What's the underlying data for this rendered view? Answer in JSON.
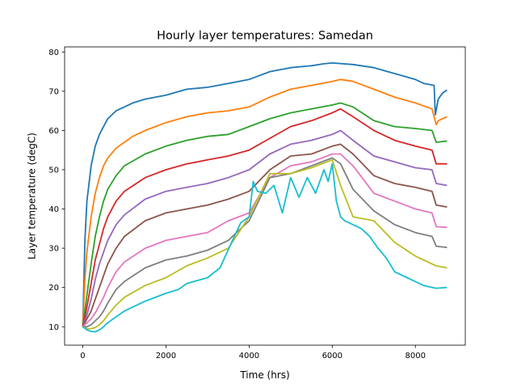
{
  "chart_data": {
    "type": "line",
    "title": "Hourly layer temperatures: Samedan",
    "xlabel": "Time (hrs)",
    "ylabel": "Layer temperature (degC)",
    "xlim": [
      -437,
      9200
    ],
    "ylim": [
      5.3,
      81.3
    ],
    "xticks": [
      0,
      2000,
      4000,
      6000,
      8000
    ],
    "yticks": [
      10,
      20,
      30,
      40,
      50,
      60,
      70,
      80
    ],
    "grid": false,
    "legend": "none",
    "series": [
      {
        "color": "#1f77b4",
        "x": [
          0,
          50,
          100,
          200,
          300,
          400,
          500,
          600,
          800,
          1000,
          1200,
          1500,
          2000,
          2500,
          3000,
          3500,
          4000,
          4500,
          5000,
          5500,
          5800,
          6000,
          6500,
          7000,
          7500,
          8000,
          8200,
          8450,
          8480,
          8550,
          8650,
          8760
        ],
        "y": [
          10,
          32,
          42,
          51,
          56,
          59,
          61,
          63,
          65,
          66,
          67,
          68,
          69,
          70.5,
          71,
          72,
          73,
          75,
          76,
          76.5,
          77,
          77.2,
          76.8,
          76,
          74.5,
          73,
          72,
          71.5,
          64,
          68,
          69.5,
          70.3
        ]
      },
      {
        "color": "#ff7f0e",
        "x": [
          0,
          50,
          100,
          200,
          300,
          400,
          500,
          600,
          800,
          1000,
          1200,
          1500,
          2000,
          2500,
          3000,
          3500,
          4000,
          4500,
          5000,
          5500,
          6000,
          6200,
          6500,
          7000,
          7500,
          8000,
          8400,
          8500,
          8550,
          8650,
          8760
        ],
        "y": [
          10,
          22,
          29,
          38,
          44,
          48,
          51,
          53,
          55.5,
          57,
          58.5,
          60,
          62,
          63.5,
          64.5,
          65,
          66,
          68.5,
          70.5,
          71.5,
          72.5,
          73,
          72.5,
          70.5,
          68.5,
          67,
          65.5,
          61.5,
          62.5,
          63,
          63.5
        ]
      },
      {
        "color": "#2ca02c",
        "x": [
          0,
          100,
          200,
          300,
          400,
          500,
          600,
          800,
          1000,
          1500,
          2000,
          2500,
          3000,
          3500,
          4000,
          4500,
          5000,
          5500,
          6000,
          6200,
          6500,
          7000,
          7500,
          8000,
          8400,
          8500,
          8760
        ],
        "y": [
          10,
          18,
          26,
          33,
          38,
          42,
          45,
          48.5,
          51,
          54,
          56,
          57.5,
          58.5,
          59,
          61,
          63,
          64.5,
          65.5,
          66.5,
          67,
          66,
          62.5,
          61,
          60.5,
          60,
          57,
          57.3
        ]
      },
      {
        "color": "#d62728",
        "x": [
          0,
          100,
          200,
          300,
          400,
          500,
          600,
          800,
          1000,
          1500,
          2000,
          2500,
          3000,
          3500,
          4000,
          4500,
          5000,
          5500,
          6000,
          6200,
          6500,
          7000,
          7500,
          8000,
          8400,
          8500,
          8760
        ],
        "y": [
          10,
          15,
          21,
          27,
          31,
          35,
          38,
          42,
          44.5,
          48,
          50,
          51.5,
          52.5,
          53.5,
          55,
          58,
          61,
          62.5,
          64.5,
          65.5,
          63.5,
          60,
          57.5,
          56,
          55,
          51.5,
          51.5
        ]
      },
      {
        "color": "#9467bd",
        "x": [
          0,
          100,
          200,
          300,
          400,
          500,
          600,
          800,
          1000,
          1500,
          2000,
          2500,
          3000,
          3500,
          4000,
          4500,
          5000,
          5500,
          6000,
          6200,
          6500,
          7000,
          7500,
          8000,
          8400,
          8500,
          8760
        ],
        "y": [
          10,
          13,
          17,
          22,
          26,
          29,
          32,
          36,
          38.5,
          42.5,
          44.5,
          45.5,
          46.5,
          48,
          50,
          54,
          56.5,
          57.5,
          59,
          60,
          57.5,
          53.5,
          52,
          50.5,
          50,
          46.5,
          46
        ]
      },
      {
        "color": "#8c564b",
        "x": [
          0,
          100,
          200,
          300,
          400,
          500,
          600,
          800,
          1000,
          1500,
          2000,
          2500,
          3000,
          3500,
          4000,
          4500,
          5000,
          5500,
          6000,
          6200,
          6500,
          7000,
          7500,
          8000,
          8400,
          8500,
          8760
        ],
        "y": [
          10,
          12,
          14,
          17,
          20,
          23,
          26,
          30,
          33,
          37,
          39,
          40,
          41,
          42.5,
          44.5,
          50,
          53.5,
          54,
          56,
          56.5,
          54,
          48.5,
          46.5,
          45.5,
          44.5,
          41,
          40.5
        ]
      },
      {
        "color": "#e377c2",
        "x": [
          0,
          100,
          200,
          300,
          400,
          500,
          600,
          800,
          1000,
          1500,
          2000,
          2500,
          3000,
          3500,
          4000,
          4500,
          5000,
          5500,
          6000,
          6200,
          6500,
          7000,
          7500,
          8000,
          8400,
          8500,
          8760
        ],
        "y": [
          10,
          11,
          12,
          13.5,
          15.5,
          17.5,
          20,
          24,
          26.5,
          30,
          32,
          33,
          34,
          37,
          39,
          48,
          51,
          52,
          54,
          54,
          51,
          44,
          42,
          40,
          39,
          35.5,
          35.3
        ]
      },
      {
        "color": "#7f7f7f",
        "x": [
          0,
          100,
          200,
          300,
          400,
          500,
          600,
          800,
          1000,
          1500,
          2000,
          2500,
          3000,
          3500,
          4000,
          4500,
          5000,
          5500,
          6000,
          6200,
          6500,
          7000,
          7500,
          8000,
          8400,
          8500,
          8760
        ],
        "y": [
          10,
          10,
          10.5,
          11.5,
          12.5,
          14,
          16,
          19.5,
          21.5,
          25,
          27,
          28,
          29.5,
          32,
          37,
          48,
          49,
          51,
          53,
          51.5,
          45,
          39.5,
          36,
          34,
          33,
          30.5,
          30.2
        ]
      },
      {
        "color": "#bcbd22",
        "x": [
          0,
          100,
          200,
          300,
          400,
          500,
          600,
          800,
          1000,
          1500,
          2000,
          2500,
          3000,
          3500,
          4000,
          4500,
          5000,
          5500,
          6000,
          6200,
          6500,
          7000,
          7500,
          8000,
          8400,
          8500,
          8760
        ],
        "y": [
          10,
          9.5,
          9.5,
          9.8,
          10.5,
          11.5,
          13,
          15.5,
          17.5,
          20.5,
          22.5,
          25.5,
          27.5,
          30,
          38,
          49,
          49,
          50.5,
          52.5,
          46,
          38,
          37,
          31.5,
          28,
          26,
          25.5,
          25
        ]
      },
      {
        "color": "#17becf",
        "x": [
          0,
          100,
          200,
          300,
          400,
          500,
          600,
          800,
          1000,
          1500,
          2000,
          2300,
          2500,
          3000,
          3300,
          3600,
          3800,
          4000,
          4100,
          4200,
          4400,
          4600,
          4800,
          5000,
          5200,
          5400,
          5600,
          5800,
          5900,
          6000,
          6100,
          6200,
          6300,
          6500,
          6700,
          6900,
          7100,
          7300,
          7500,
          7800,
          8000,
          8200,
          8400,
          8500,
          8760
        ],
        "y": [
          10,
          9.2,
          8.8,
          8.7,
          9.2,
          10,
          11,
          12.5,
          14,
          16.5,
          18.5,
          19.5,
          21,
          22.5,
          25,
          32,
          36.5,
          38,
          47,
          44.5,
          44,
          46,
          39,
          48,
          43,
          48,
          44,
          50,
          47,
          51.5,
          42,
          38,
          37,
          36,
          35,
          33,
          30,
          27.5,
          24,
          22.5,
          21.5,
          20.5,
          20,
          19.8,
          20
        ]
      }
    ]
  }
}
